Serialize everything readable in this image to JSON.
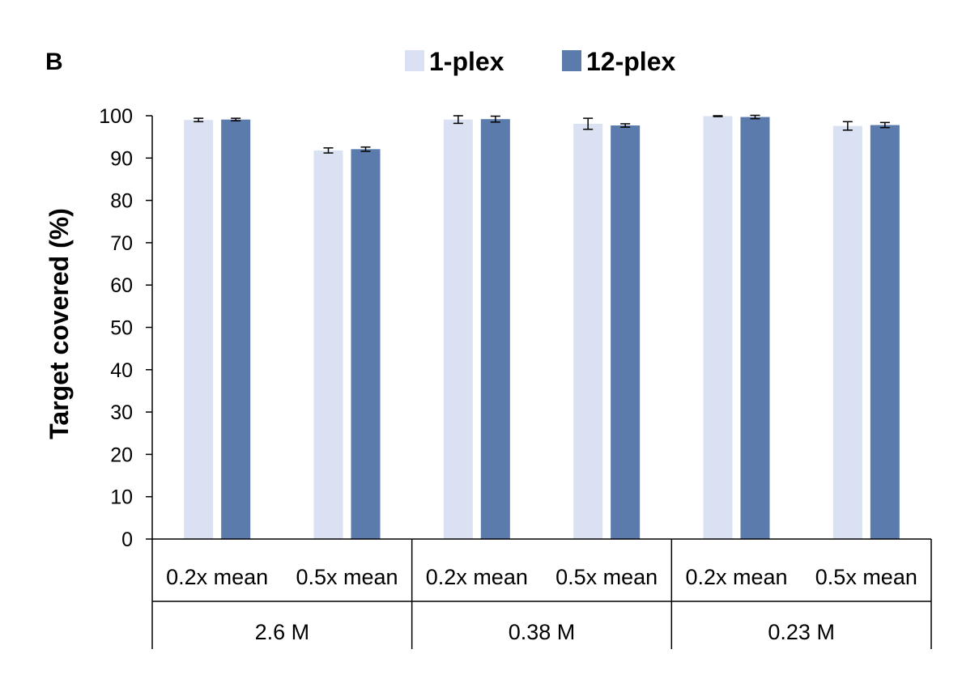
{
  "panel_label": "B",
  "chart_data": {
    "type": "bar",
    "title": "",
    "ylabel": "Target covered (%)",
    "xlabel": "",
    "ylim": [
      0,
      100
    ],
    "yticks": [
      0,
      10,
      20,
      30,
      40,
      50,
      60,
      70,
      80,
      90,
      100
    ],
    "grid": false,
    "legend_position": "top-center",
    "categories": [
      "0.2x mean",
      "0.5x mean",
      "0.2x mean",
      "0.5x mean",
      "0.2x mean",
      "0.5x mean"
    ],
    "groups": [
      {
        "label": "2.6 M",
        "span": 2
      },
      {
        "label": "0.38 M",
        "span": 2
      },
      {
        "label": "0.23 M",
        "span": 2
      }
    ],
    "series": [
      {
        "name": "1-plex",
        "color": "#d9e1f2",
        "values": [
          99.0,
          91.8,
          99.1,
          98.1,
          99.9,
          97.6
        ],
        "errors": [
          0.4,
          0.6,
          0.9,
          1.3,
          0.1,
          1.0
        ]
      },
      {
        "name": "12-plex",
        "color": "#5a7bab",
        "values": [
          99.1,
          92.1,
          99.2,
          97.7,
          99.7,
          97.8
        ],
        "errors": [
          0.3,
          0.5,
          0.7,
          0.4,
          0.4,
          0.6
        ]
      }
    ]
  }
}
